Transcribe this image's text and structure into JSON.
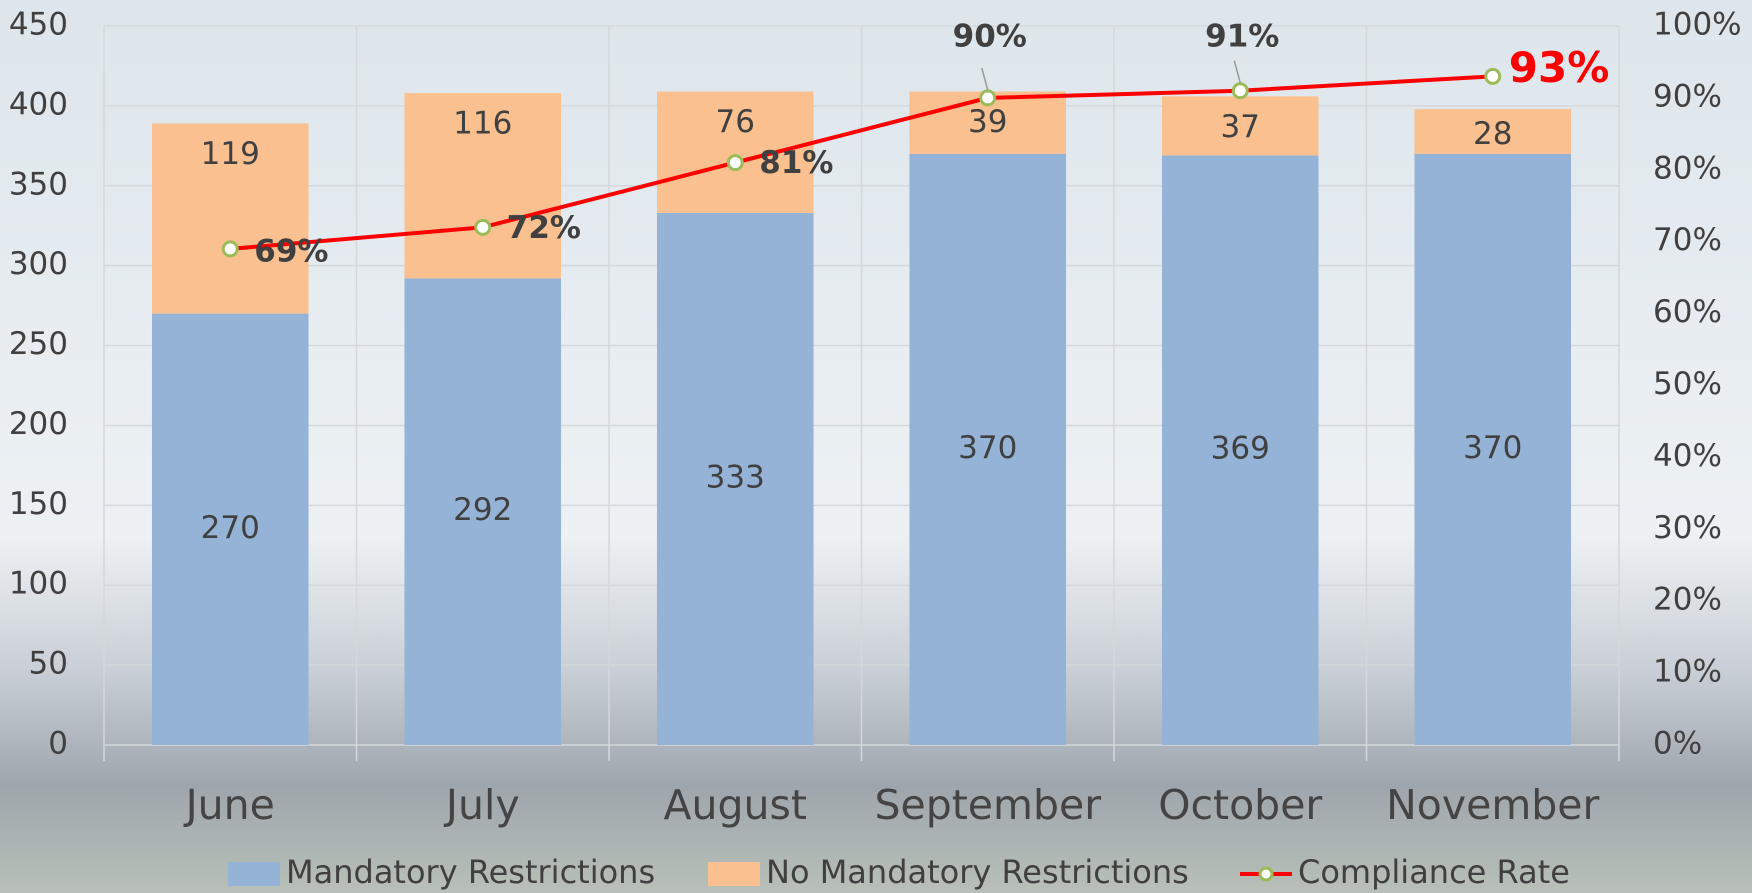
{
  "chart_data": {
    "type": "bar",
    "categories": [
      "June",
      "July",
      "August",
      "September",
      "October",
      "November"
    ],
    "series": [
      {
        "name": "Mandatory Restrictions",
        "color": "#95b3d7",
        "values": [
          270,
          292,
          333,
          370,
          369,
          370
        ]
      },
      {
        "name": "No Mandatory Restrictions",
        "color": "#fac090",
        "values": [
          119,
          116,
          76,
          39,
          37,
          28
        ]
      },
      {
        "name": "Compliance Rate",
        "color": "#ff0000",
        "axis": "y2",
        "type": "line",
        "values": [
          69,
          72,
          81,
          90,
          91,
          93
        ],
        "value_labels": [
          "69%",
          "72%",
          "81%",
          "90%",
          "91%",
          "93%"
        ]
      }
    ],
    "stacked": true,
    "ylim": [
      0,
      450
    ],
    "yticks": [
      0,
      50,
      100,
      150,
      200,
      250,
      300,
      350,
      400,
      450
    ],
    "y2lim": [
      0,
      100
    ],
    "y2ticks": [
      {
        "value": 0,
        "label": "0%"
      },
      {
        "value": 10,
        "label": "10%"
      },
      {
        "value": 20,
        "label": "20%"
      },
      {
        "value": 30,
        "label": "30%"
      },
      {
        "value": 40,
        "label": "40%"
      },
      {
        "value": 50,
        "label": "50%"
      },
      {
        "value": 60,
        "label": "60%"
      },
      {
        "value": 70,
        "label": "70%"
      },
      {
        "value": 80,
        "label": "80%"
      },
      {
        "value": 90,
        "label": "90%"
      },
      {
        "value": 100,
        "label": "100%"
      }
    ],
    "grid": true,
    "legend": "bottom"
  }
}
